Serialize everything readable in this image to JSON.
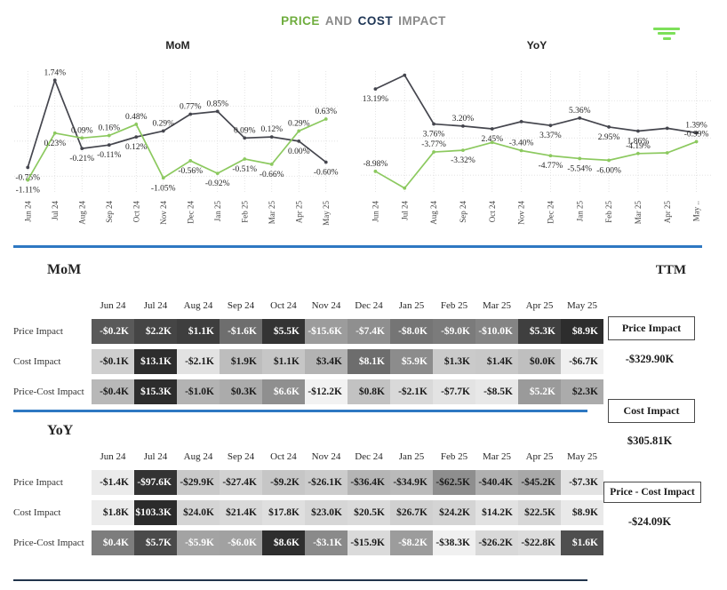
{
  "header": {
    "title": {
      "price": "PRICE",
      "and": "AND",
      "cost": "COST",
      "impact": "IMPACT"
    }
  },
  "colors": {
    "dark_line": "#45464e",
    "green_line": "#8cc95f",
    "divider_blue": "#2e78c2",
    "bottom_line": "#22344c",
    "title_green": "#6fad3e",
    "title_navy": "#1f3656",
    "title_gray": "#8a8a8a",
    "icon_green": "#7de05a",
    "label_text": "#262626"
  },
  "chart_data": [
    {
      "type": "line",
      "title": "MoM",
      "categories": [
        "Jun 24",
        "Jul 24",
        "Aug 24",
        "Sep 24",
        "Oct 24",
        "Nov 24",
        "Dec 24",
        "Jan 25",
        "Feb 25",
        "Mar 25",
        "Apr 25",
        "May 25"
      ],
      "ylim": [
        -1.5,
        2.0
      ],
      "gridlines": [
        1,
        0,
        -1
      ],
      "grid": "dotted",
      "legend": "none",
      "series": [
        {
          "name": "dark-line",
          "values": [
            -0.75,
            1.74,
            -0.21,
            -0.11,
            0.12,
            0.29,
            0.77,
            0.85,
            0.09,
            0.12,
            0.0,
            -0.6
          ],
          "labels": [
            "-0.75%",
            "1.74%",
            "-0.21%",
            "-0.11%",
            "0.12%",
            "0.29%",
            "0.77%",
            "0.85%",
            "0.09%",
            "0.12%",
            "0.00%",
            "-0.60%"
          ],
          "label_pos": [
            "b",
            "a",
            "b",
            "b",
            "b",
            "a",
            "a",
            "a",
            "a",
            "a",
            "b",
            "b"
          ]
        },
        {
          "name": "green-line",
          "values": [
            -1.11,
            0.23,
            0.09,
            0.16,
            0.48,
            -1.05,
            -0.56,
            -0.92,
            -0.51,
            -0.66,
            0.29,
            0.63
          ],
          "labels": [
            "-1.11%",
            "0.23%",
            "0.09%",
            "0.16%",
            "0.48%",
            "-1.05%",
            "-0.56%",
            "-0.92%",
            "-0.51%",
            "-0.66%",
            "0.29%",
            "0.63%"
          ],
          "label_pos": [
            "b",
            "b",
            "a",
            "a",
            "a",
            "b",
            "b",
            "b",
            "b",
            "b",
            "a",
            "a"
          ]
        }
      ]
    },
    {
      "type": "line",
      "title": "YoY",
      "categories": [
        "Jun 24",
        "Jul 24",
        "Aug 24",
        "Sep 24",
        "Oct 24",
        "Nov 24",
        "Dec 24",
        "Jan 25",
        "Feb 25",
        "Mar 25",
        "Apr 25",
        "May .."
      ],
      "ylim": [
        -15,
        18
      ],
      "gridlines": [
        10,
        0,
        -10
      ],
      "grid": "dotted",
      "legend": "none",
      "series": [
        {
          "name": "dark-line",
          "values": [
            13.19,
            16.9,
            3.76,
            3.2,
            2.45,
            4.4,
            3.37,
            5.36,
            2.95,
            1.86,
            2.6,
            1.39
          ],
          "labels": [
            "13.19%",
            "",
            "3.76%",
            "3.20%",
            "2.45%",
            "",
            "3.37%",
            "5.36%",
            "2.95%",
            "1.86%",
            "",
            "1.39%"
          ],
          "label_pos": [
            "b",
            "",
            "b",
            "a",
            "b",
            "",
            "b",
            "a",
            "b",
            "b",
            "",
            "a"
          ]
        },
        {
          "name": "green-line",
          "values": [
            -8.98,
            -13.5,
            -3.77,
            -3.32,
            -1.2,
            -3.4,
            -4.77,
            -5.54,
            -6.0,
            -4.19,
            -4.0,
            -0.99
          ],
          "labels": [
            "-8.98%",
            "",
            "-3.77%",
            "-3.32%",
            "",
            "-3.40%",
            "-4.77%",
            "-5.54%",
            "-6.00%",
            "-4.19%",
            "",
            "-0.99%"
          ],
          "label_pos": [
            "a",
            "",
            "a",
            "b",
            "",
            "a",
            "b",
            "b",
            "b",
            "a",
            "",
            "a"
          ]
        }
      ]
    }
  ],
  "tables": {
    "mom": {
      "heading": "MoM",
      "columns": [
        "Jun 24",
        "Jul 24",
        "Aug 24",
        "Sep 24",
        "Oct 24",
        "Nov 24",
        "Dec 24",
        "Jan 25",
        "Feb 25",
        "Mar 25",
        "Apr 25",
        "May 25"
      ],
      "rows": [
        {
          "label": "Price Impact",
          "values": [
            "-$0.2K",
            "$2.2K",
            "$1.1K",
            "-$1.6K",
            "$5.5K",
            "-$15.6K",
            "-$7.4K",
            "-$8.0K",
            "-$9.0K",
            "-$10.0K",
            "$5.3K",
            "$8.9K"
          ],
          "bg": [
            "#595959",
            "#454545",
            "#3e3e3e",
            "#6e6e6e",
            "#343434",
            "#9c9c9c",
            "#8f8f8f",
            "#757575",
            "#7b7b7b",
            "#848484",
            "#3f3f3f",
            "#2d2d2d"
          ],
          "fg": [
            "w",
            "w",
            "w",
            "w",
            "w",
            "w",
            "w",
            "w",
            "w",
            "w",
            "w",
            "w"
          ]
        },
        {
          "label": "Cost Impact",
          "values": [
            "-$0.1K",
            "$13.1K",
            "-$2.1K",
            "$1.9K",
            "$1.1K",
            "$3.4K",
            "$8.1K",
            "$5.9K",
            "$1.3K",
            "$1.4K",
            "$0.0K",
            "-$6.7K"
          ],
          "bg": [
            "#cfcfcf",
            "#2d2d2d",
            "#e2e2e2",
            "#bdbdbd",
            "#c6c6c6",
            "#b3b3b3",
            "#6d6d6d",
            "#8c8c8c",
            "#cacaca",
            "#c8c8c8",
            "#bfbfbf",
            "#f0f0f0"
          ],
          "fg": [
            "b",
            "w",
            "b",
            "b",
            "b",
            "b",
            "w",
            "w",
            "b",
            "b",
            "b",
            "b"
          ]
        },
        {
          "label": "Price-Cost Impact",
          "values": [
            "-$0.4K",
            "$15.3K",
            "-$1.0K",
            "$0.3K",
            "$6.6K",
            "-$12.2K",
            "$0.8K",
            "-$2.1K",
            "-$7.7K",
            "-$8.5K",
            "$5.2K",
            "$2.3K"
          ],
          "bg": [
            "#b8b8b8",
            "#2d2d2d",
            "#b3b3b3",
            "#ababab",
            "#8f8f8f",
            "#f2f2f2",
            "#c2c2c2",
            "#d9d9d9",
            "#e3e3e3",
            "#e8e8e8",
            "#9a9a9a",
            "#ababab"
          ],
          "fg": [
            "b",
            "w",
            "b",
            "b",
            "w",
            "b",
            "b",
            "b",
            "b",
            "b",
            "w",
            "b"
          ]
        }
      ]
    },
    "yoy": {
      "heading": "YoY",
      "columns": [
        "Jun 24",
        "Jul 24",
        "Aug 24",
        "Sep 24",
        "Oct 24",
        "Nov 24",
        "Dec 24",
        "Jan 25",
        "Feb 25",
        "Mar 25",
        "Apr 25",
        "May 25"
      ],
      "rows": [
        {
          "label": "Price Impact",
          "values": [
            "-$1.4K",
            "-$97.6K",
            "-$29.9K",
            "-$27.4K",
            "-$9.2K",
            "-$26.1K",
            "-$36.4K",
            "-$34.9K",
            "-$62.5K",
            "-$40.4K",
            "-$45.2K",
            "-$7.3K"
          ],
          "bg": [
            "#ebebeb",
            "#333333",
            "#c9c9c9",
            "#d2d2d2",
            "#c6c6c6",
            "#cccccc",
            "#b5b5b5",
            "#bababa",
            "#8e8e8e",
            "#b0b0b0",
            "#a8a8a8",
            "#e3e3e3"
          ],
          "fg": [
            "b",
            "w",
            "b",
            "b",
            "b",
            "b",
            "b",
            "b",
            "b",
            "b",
            "b",
            "b"
          ]
        },
        {
          "label": "Cost Impact",
          "values": [
            "$1.8K",
            "$103.3K",
            "$24.0K",
            "$21.4K",
            "$17.8K",
            "$23.0K",
            "$20.5K",
            "$26.7K",
            "$24.2K",
            "$14.2K",
            "$22.5K",
            "$8.9K"
          ],
          "bg": [
            "#ececec",
            "#2b2b2b",
            "#d4d4d4",
            "#d9d9d9",
            "#dfdfdf",
            "#d6d6d6",
            "#dadada",
            "#d0d0d0",
            "#d4d4d4",
            "#e2e2e2",
            "#d7d7d7",
            "#e9e9e9"
          ],
          "fg": [
            "b",
            "w",
            "b",
            "b",
            "b",
            "b",
            "b",
            "b",
            "b",
            "b",
            "b",
            "b"
          ]
        },
        {
          "label": "Price-Cost Impact",
          "values": [
            "$0.4K",
            "$5.7K",
            "-$5.9K",
            "-$6.0K",
            "$8.6K",
            "-$3.1K",
            "-$15.9K",
            "-$8.2K",
            "-$38.3K",
            "-$26.2K",
            "-$22.8K",
            "$1.6K"
          ],
          "bg": [
            "#7d7d7d",
            "#4a4a4a",
            "#a3a3a3",
            "#a1a1a1",
            "#2e2e2e",
            "#8a8a8a",
            "#dadada",
            "#9c9c9c",
            "#f0f0f0",
            "#d8d8d8",
            "#dcdcdc",
            "#4f4f4f"
          ],
          "fg": [
            "w",
            "w",
            "w",
            "w",
            "w",
            "w",
            "b",
            "w",
            "b",
            "b",
            "b",
            "w"
          ]
        }
      ]
    }
  },
  "ttm": {
    "heading": "TTM",
    "items": [
      {
        "label": "Price Impact",
        "value": "-$329.90K"
      },
      {
        "label": "Cost Impact",
        "value": "$305.81K"
      },
      {
        "label": "Price - Cost Impact",
        "value": "-$24.09K"
      }
    ]
  }
}
